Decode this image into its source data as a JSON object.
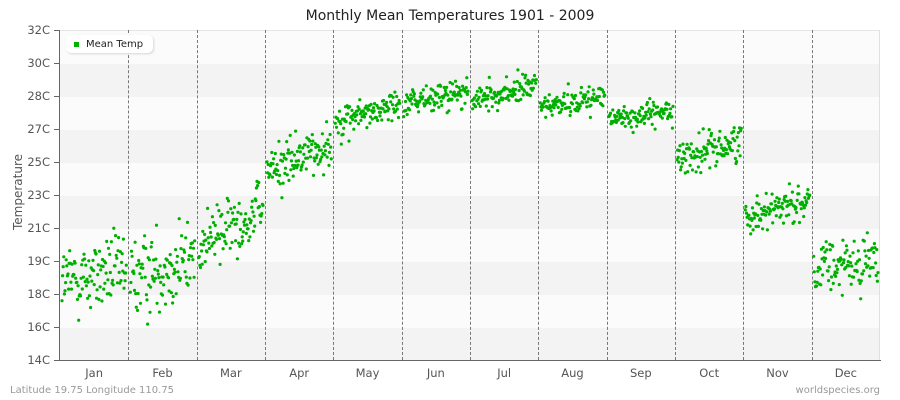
{
  "chart_data": {
    "type": "scatter",
    "title": "Monthly Mean Temperatures 1901 - 2009",
    "xlabel": "",
    "ylabel": "Temperature",
    "categories": [
      "Jan",
      "Feb",
      "Mar",
      "Apr",
      "May",
      "Jun",
      "Jul",
      "Aug",
      "Sep",
      "Oct",
      "Nov",
      "Dec"
    ],
    "y_ticks": [
      "32C",
      "30C",
      "28C",
      "27C",
      "25C",
      "23C",
      "21C",
      "19C",
      "18C",
      "16C",
      "14C"
    ],
    "ylim": [
      14,
      32
    ],
    "grid": "alternating horizontal bands, dashed vertical month separators",
    "legend": {
      "entries": [
        "Mean Temp"
      ],
      "position": "top-left"
    },
    "series": [
      {
        "name": "Mean Temp",
        "color": "#00b000",
        "points_per_month": 109,
        "monthly_summary": [
          {
            "month": "Jan",
            "mean": 18.6,
            "start": 18.3,
            "end": 18.9,
            "spread": 1.4,
            "min": 14.5,
            "max": 22.0
          },
          {
            "month": "Feb",
            "mean": 18.9,
            "start": 18.4,
            "end": 19.6,
            "spread": 1.5,
            "min": 14.2,
            "max": 22.5
          },
          {
            "month": "Mar",
            "mean": 21.2,
            "start": 20.2,
            "end": 22.3,
            "spread": 1.2,
            "min": 18.9,
            "max": 25.0
          },
          {
            "month": "Apr",
            "mean": 25.0,
            "start": 24.3,
            "end": 25.8,
            "spread": 0.9,
            "min": 22.5,
            "max": 27.3
          },
          {
            "month": "May",
            "mean": 27.5,
            "start": 27.0,
            "end": 28.0,
            "spread": 0.65,
            "min": 25.5,
            "max": 29.7
          },
          {
            "month": "Jun",
            "mean": 28.3,
            "start": 28.0,
            "end": 28.6,
            "spread": 0.55,
            "min": 26.6,
            "max": 29.7
          },
          {
            "month": "Jul",
            "mean": 28.5,
            "start": 28.1,
            "end": 29.0,
            "spread": 0.55,
            "min": 27.0,
            "max": 30.1
          },
          {
            "month": "Aug",
            "mean": 28.0,
            "start": 27.8,
            "end": 28.4,
            "spread": 0.5,
            "min": 27.0,
            "max": 29.5
          },
          {
            "month": "Sep",
            "mean": 27.3,
            "start": 27.1,
            "end": 27.6,
            "spread": 0.5,
            "min": 26.1,
            "max": 28.5
          },
          {
            "month": "Oct",
            "mean": 25.3,
            "start": 25.0,
            "end": 25.9,
            "spread": 0.7,
            "min": 22.8,
            "max": 27.5
          },
          {
            "month": "Nov",
            "mean": 22.3,
            "start": 21.9,
            "end": 22.8,
            "spread": 0.7,
            "min": 20.6,
            "max": 24.7
          },
          {
            "month": "Dec",
            "mean": 19.1,
            "start": 18.8,
            "end": 19.5,
            "spread": 1.1,
            "min": 16.2,
            "max": 22.0
          }
        ]
      }
    ]
  },
  "header": {
    "title": "Monthly Mean Temperatures 1901 - 2009"
  },
  "legend": {
    "label": "Mean Temp",
    "color": "#00b000"
  },
  "axes": {
    "y_title": "Temperature"
  },
  "footer": {
    "location": "Latitude 19.75 Longitude 110.75",
    "source": "worldspecies.org"
  },
  "colors": {
    "band_light": "#fbfbfb",
    "band_dark": "#f3f3f3",
    "point": "#00b000"
  }
}
